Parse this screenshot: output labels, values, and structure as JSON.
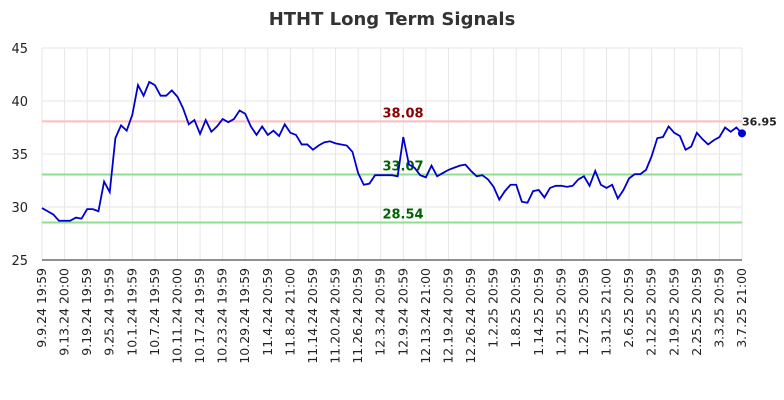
{
  "chart_data": {
    "type": "line",
    "title": "HTHT Long Term Signals",
    "categories": [
      "9.9.24 19:59",
      null,
      null,
      null,
      "9.13.24 20:00",
      null,
      null,
      null,
      "9.19.24 19:59",
      null,
      null,
      null,
      "9.25.24 19:59",
      null,
      null,
      null,
      "10.1.24 19:59",
      null,
      null,
      null,
      "10.7.24 19:59",
      null,
      null,
      null,
      "10.11.24 20:00",
      null,
      null,
      null,
      "10.17.24 19:59",
      null,
      null,
      null,
      "10.23.24 19:59",
      null,
      null,
      null,
      "10.29.24 19:59",
      null,
      null,
      null,
      "11.4.24 20:59",
      null,
      null,
      null,
      "11.8.24 21:00",
      null,
      null,
      null,
      "11.14.24 20:59",
      null,
      null,
      null,
      "11.20.24 20:59",
      null,
      null,
      null,
      "11.26.24 20:59",
      null,
      null,
      null,
      "12.3.24 20:59",
      null,
      null,
      null,
      "12.9.24 20:59",
      null,
      null,
      null,
      "12.13.24 21:00",
      null,
      null,
      null,
      "12.19.24 20:59",
      null,
      null,
      null,
      "12.26.24 20:59",
      null,
      null,
      null,
      "1.2.25 20:59",
      null,
      null,
      null,
      "1.8.25 20:59",
      null,
      null,
      null,
      "1.14.25 20:59",
      null,
      null,
      null,
      "1.21.25 20:59",
      null,
      null,
      null,
      "1.27.25 20:59",
      null,
      null,
      null,
      "1.31.25 21:00",
      null,
      null,
      null,
      "2.6.25 20:59",
      null,
      null,
      null,
      "2.12.25 20:59",
      null,
      null,
      null,
      "2.19.25 20:59",
      null,
      null,
      null,
      "2.25.25 20:59",
      null,
      null,
      null,
      "3.3.25 20:59",
      null,
      null,
      null,
      "3.7.25 21:00"
    ],
    "series": [
      {
        "color": "#0000cc",
        "values": [
          29.9,
          29.6,
          29.3,
          28.7,
          28.7,
          28.7,
          29.0,
          28.9,
          29.8,
          29.8,
          29.6,
          32.4,
          31.4,
          36.5,
          37.7,
          37.2,
          38.7,
          41.5,
          40.5,
          41.8,
          41.5,
          40.5,
          40.5,
          41.0,
          40.4,
          39.3,
          37.8,
          38.2,
          36.9,
          38.2,
          37.1,
          37.6,
          38.3,
          38.0,
          38.3,
          39.1,
          38.8,
          37.6,
          36.8,
          37.6,
          36.8,
          37.2,
          36.7,
          37.8,
          37.0,
          36.8,
          35.9,
          35.9,
          35.4,
          35.8,
          36.1,
          36.2,
          36.0,
          35.9,
          35.8,
          35.2,
          33.2,
          32.1,
          32.2,
          33.0,
          33.0,
          33.0,
          33.0,
          32.9,
          36.6,
          34.0,
          33.7,
          33.0,
          32.8,
          33.9,
          32.9,
          33.2,
          33.5,
          33.7,
          33.9,
          34.0,
          33.4,
          32.9,
          33.0,
          32.6,
          31.9,
          30.7,
          31.5,
          32.1,
          32.1,
          30.5,
          30.4,
          31.5,
          31.6,
          30.9,
          31.8,
          32.0,
          32.0,
          31.9,
          32.0,
          32.6,
          32.9,
          32.0,
          33.4,
          32.1,
          31.8,
          32.1,
          30.8,
          31.6,
          32.7,
          33.1,
          33.1,
          33.5,
          34.8,
          36.5,
          36.6,
          37.6,
          37.0,
          36.7,
          35.4,
          35.7,
          37.0,
          36.4,
          35.9,
          36.3,
          36.6,
          37.5,
          37.1,
          37.5,
          36.95
        ]
      }
    ],
    "hlines": [
      {
        "value": 38.08,
        "color": "#ffbbbb",
        "label_color": "#8b0000"
      },
      {
        "value": 33.07,
        "color": "#90dd90",
        "label_color": "#006400"
      },
      {
        "value": 28.54,
        "color": "#90dd90",
        "label_color": "#006400"
      }
    ],
    "ylim": [
      25,
      45
    ],
    "yticks": [
      25,
      30,
      35,
      40,
      45
    ],
    "grid": true
  }
}
